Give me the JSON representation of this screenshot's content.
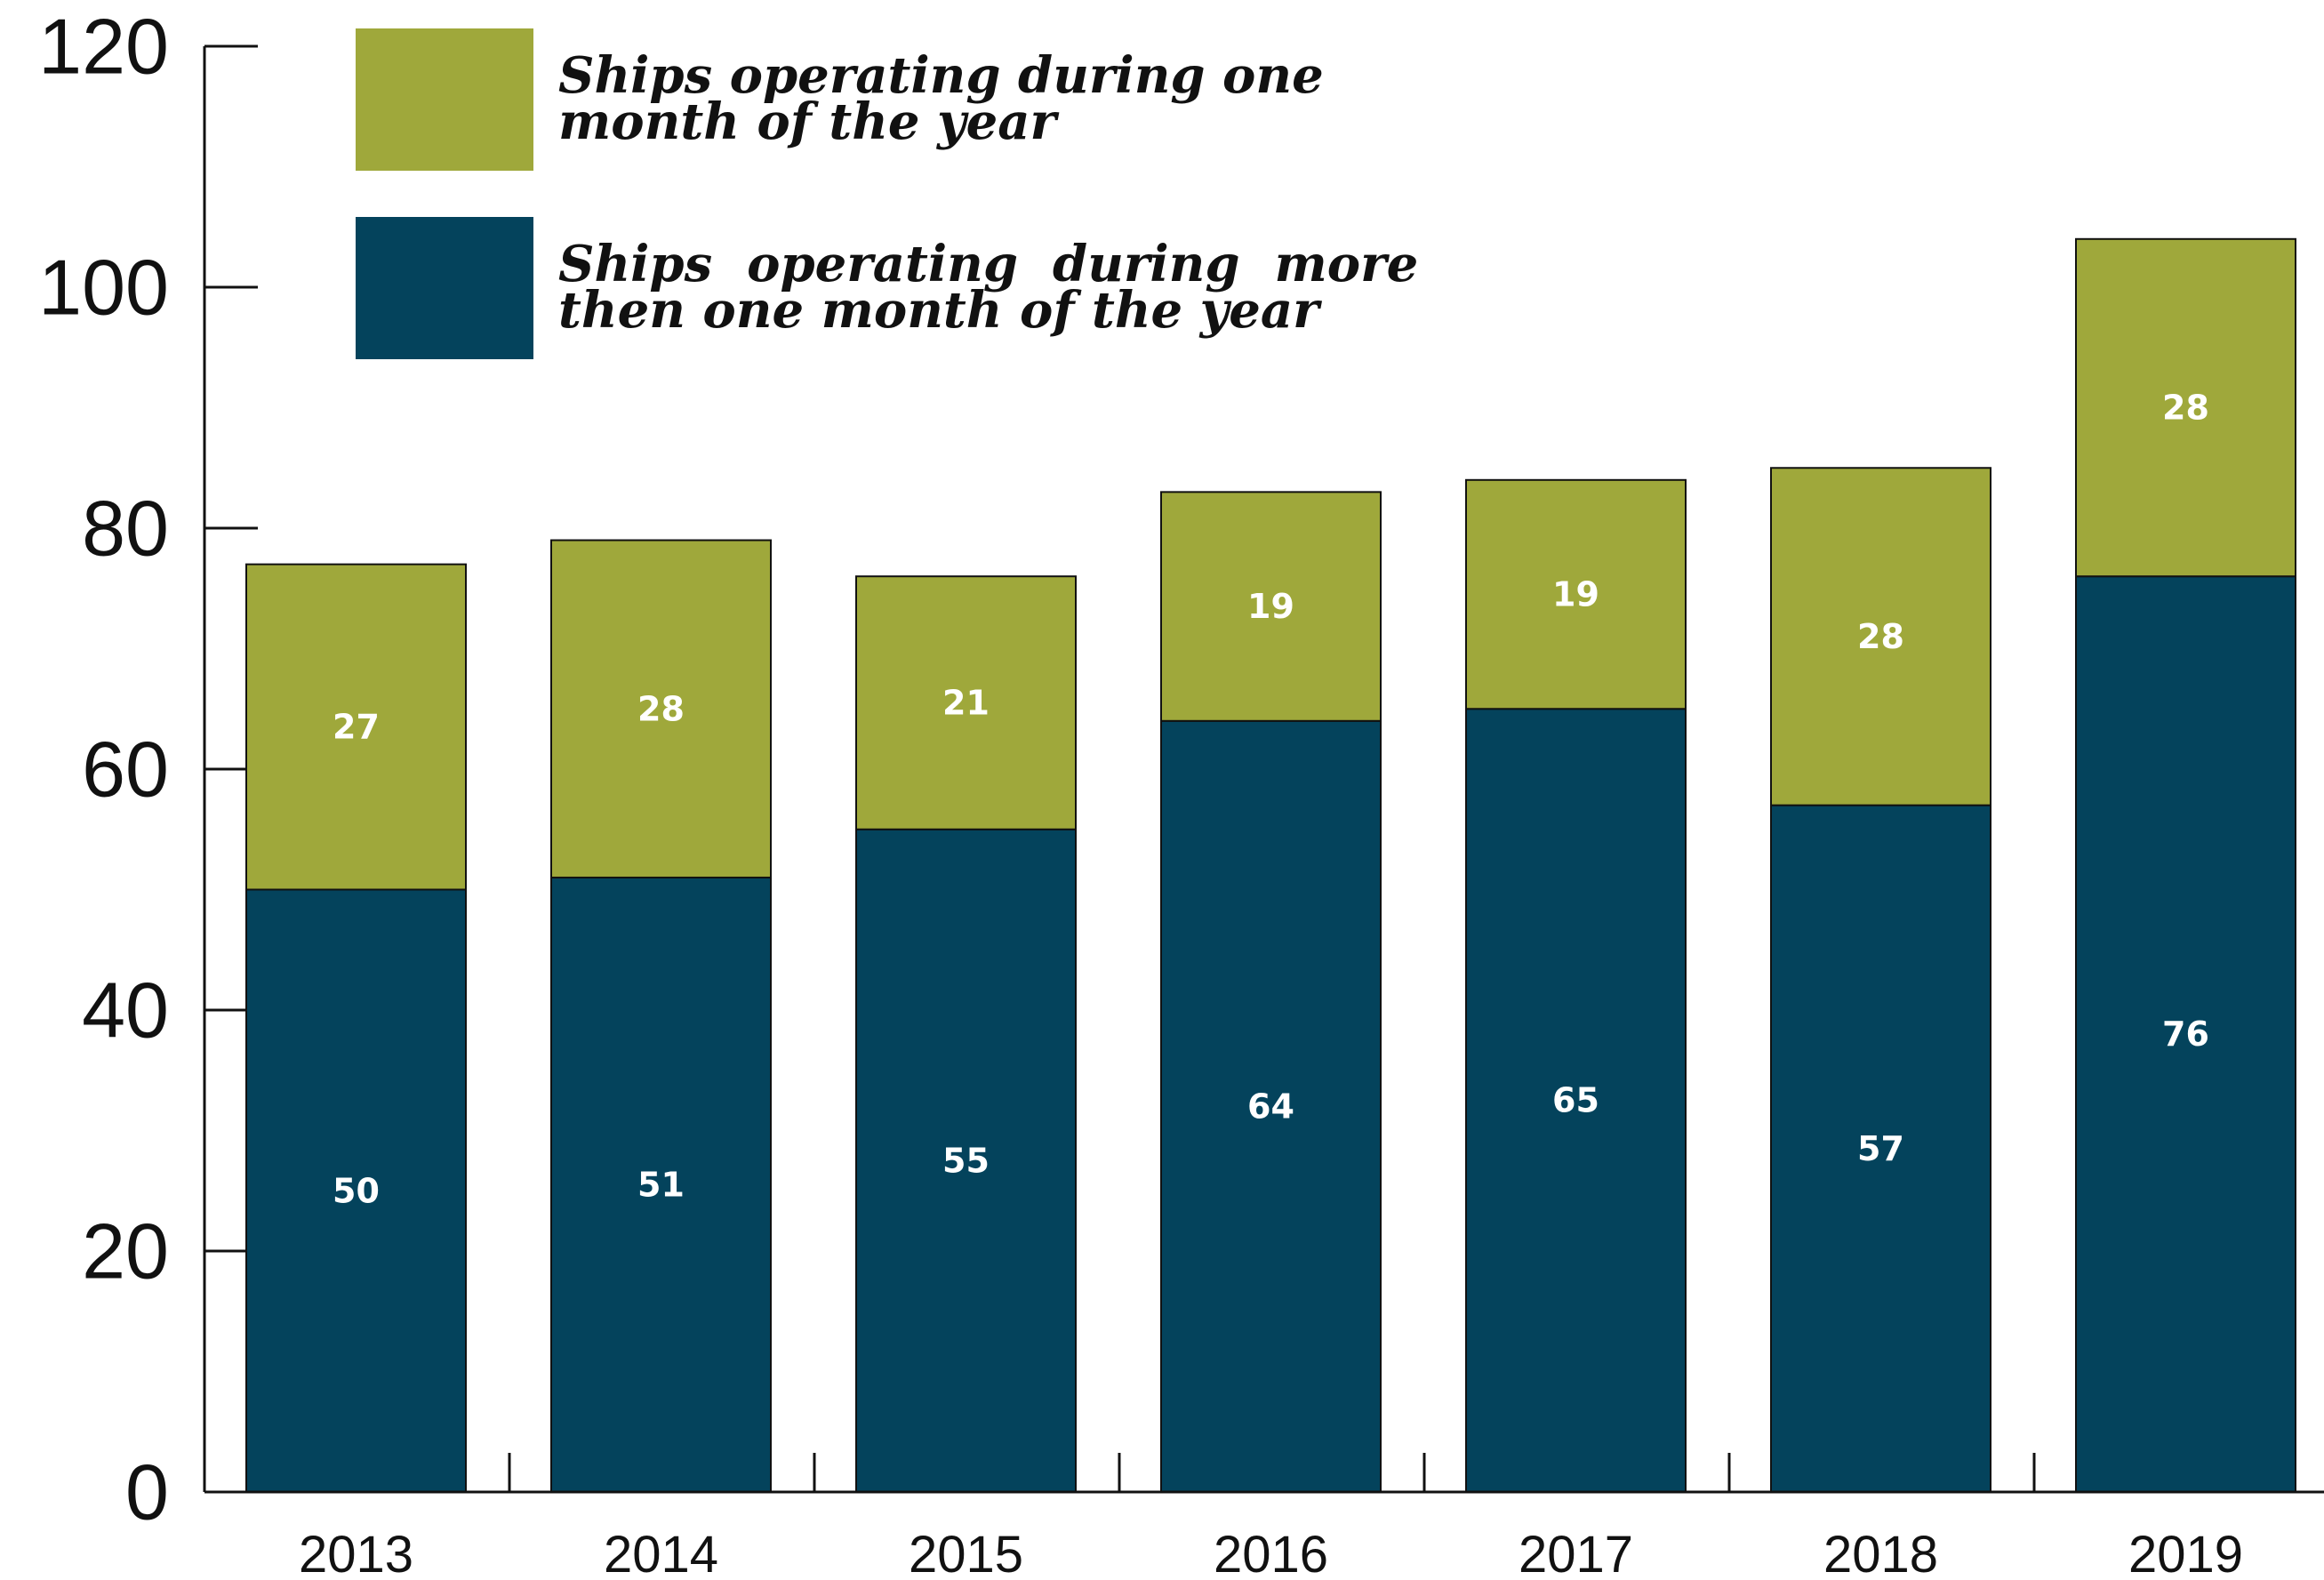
{
  "chart_data": {
    "type": "bar",
    "stacked": true,
    "categories": [
      "2013",
      "2014",
      "2015",
      "2016",
      "2017",
      "2018",
      "2019"
    ],
    "series": [
      {
        "name": "Ships operating during more then one month of the year",
        "legend_lines": [
          "Ships  operating  during  more",
          "then one month of the year"
        ],
        "color": "#04435C",
        "values": [
          50,
          51,
          55,
          64,
          65,
          57,
          76
        ]
      },
      {
        "name": "Ships operating during one month of the year",
        "legend_lines": [
          "Ships operating during one",
          "month of the year"
        ],
        "color": "#9FA83B",
        "values": [
          27,
          28,
          21,
          19,
          19,
          28,
          28
        ]
      }
    ],
    "ylim": [
      0,
      120
    ],
    "yticks": [
      "0",
      "20",
      "40",
      "60",
      "80",
      "100",
      "120"
    ],
    "data_labels": true,
    "grid": false,
    "legend_position": "top-left",
    "title": "",
    "xlabel": "",
    "ylabel": ""
  }
}
